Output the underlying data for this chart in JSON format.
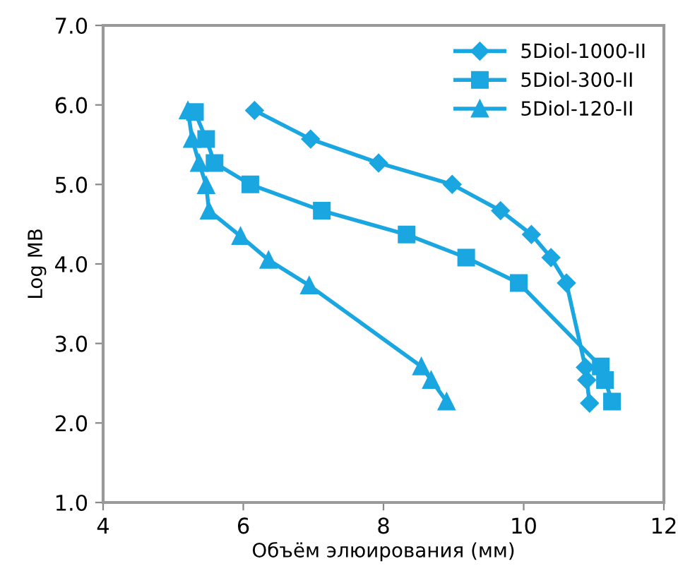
{
  "chart_data": {
    "type": "line",
    "xlabel": "Объём элюирования (мм)",
    "ylabel": "Log MB",
    "xlim": [
      4,
      12
    ],
    "xticks": [
      4,
      6,
      8,
      10,
      12
    ],
    "ylim": [
      1.0,
      7.0
    ],
    "yticks": [
      {
        "value": 1,
        "label": "1.0"
      },
      {
        "value": 2,
        "label": "2.0"
      },
      {
        "value": 3,
        "label": "3.0"
      },
      {
        "value": 4,
        "label": "4.0"
      },
      {
        "value": 5,
        "label": "5.0"
      },
      {
        "value": 6,
        "label": "6.0"
      },
      {
        "value": 7,
        "label": "7.0"
      }
    ],
    "grid": false,
    "legend": "top right",
    "series": [
      {
        "name": "5Diol-1000-II",
        "color": "#1aa6e0",
        "marker": "diamond",
        "x": [
          6.16,
          6.96,
          7.93,
          8.98,
          9.67,
          10.11,
          10.39,
          10.61,
          10.88,
          10.9,
          10.94
        ],
        "values": [
          5.93,
          5.57,
          5.27,
          5.0,
          4.67,
          4.37,
          4.08,
          3.76,
          2.7,
          2.54,
          2.25
        ]
      },
      {
        "name": "5Diol-300-II",
        "color": "#1aa6e0",
        "marker": "square",
        "x": [
          5.31,
          5.47,
          5.59,
          6.1,
          7.12,
          8.33,
          9.18,
          9.93,
          11.1,
          11.16,
          11.26
        ],
        "values": [
          5.91,
          5.57,
          5.27,
          5.0,
          4.67,
          4.37,
          4.08,
          3.76,
          2.71,
          2.54,
          2.27
        ]
      },
      {
        "name": "5Diol-120-II",
        "color": "#1aa6e0",
        "marker": "triangle",
        "x": [
          5.21,
          5.27,
          5.37,
          5.47,
          5.51,
          5.96,
          6.36,
          6.94,
          8.54,
          8.68,
          8.9
        ],
        "values": [
          5.93,
          5.57,
          5.27,
          4.99,
          4.67,
          4.35,
          4.05,
          3.73,
          2.71,
          2.54,
          2.27
        ]
      }
    ]
  }
}
